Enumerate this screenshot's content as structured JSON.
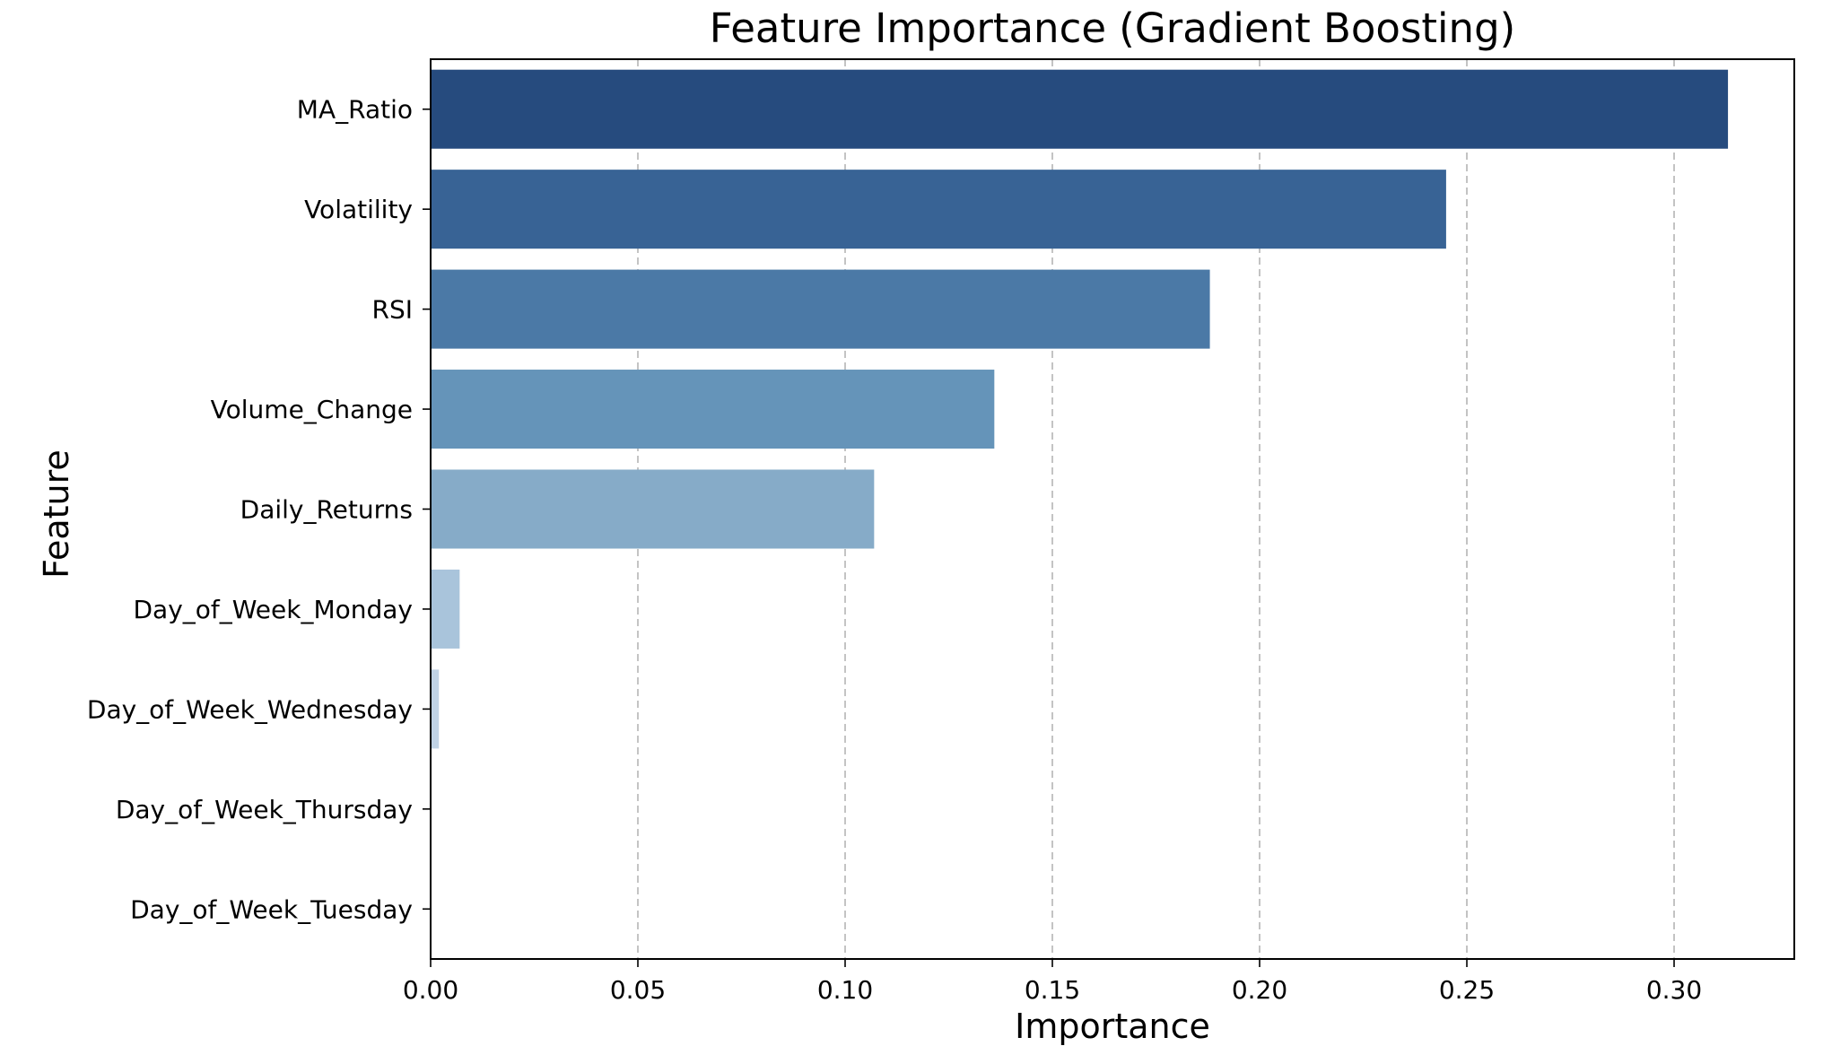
{
  "chart_data": {
    "type": "bar",
    "orientation": "horizontal",
    "title": "Feature Importance (Gradient Boosting)",
    "xlabel": "Importance",
    "ylabel": "Feature",
    "categories": [
      "MA_Ratio",
      "Volatility",
      "RSI",
      "Volume_Change",
      "Daily_Returns",
      "Day_of_Week_Monday",
      "Day_of_Week_Wednesday",
      "Day_of_Week_Thursday",
      "Day_of_Week_Tuesday"
    ],
    "values": [
      0.313,
      0.245,
      0.188,
      0.136,
      0.107,
      0.007,
      0.002,
      0.0,
      0.0
    ],
    "colors": [
      "#264b7e",
      "#386395",
      "#4b79a6",
      "#6594b9",
      "#86abc8",
      "#a9c4db",
      "#c0d2e5",
      "#d6e3f0",
      "#e3ecf6"
    ],
    "xlim": [
      0,
      0.329
    ],
    "xticks": [
      0.0,
      0.05,
      0.1,
      0.15,
      0.2,
      0.25,
      0.3
    ],
    "xtick_labels": [
      "0.00",
      "0.05",
      "0.10",
      "0.15",
      "0.20",
      "0.25",
      "0.30"
    ],
    "grid": {
      "axis": "x",
      "style": "dashed"
    },
    "legend": null
  }
}
